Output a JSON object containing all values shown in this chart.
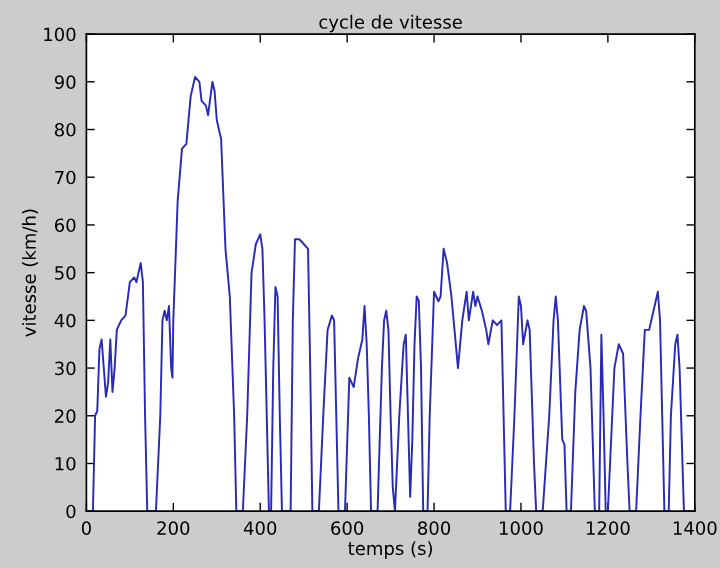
{
  "chart_data": {
    "type": "line",
    "title": "cycle de vitesse",
    "xlabel": "temps (s)",
    "ylabel": "vitesse (km/h)",
    "x": [
      0,
      15,
      20,
      25,
      30,
      35,
      40,
      45,
      50,
      55,
      60,
      65,
      70,
      80,
      90,
      100,
      110,
      115,
      120,
      125,
      130,
      135,
      140,
      160,
      170,
      175,
      180,
      185,
      190,
      195,
      198,
      200,
      210,
      220,
      230,
      240,
      250,
      260,
      265,
      275,
      280,
      290,
      295,
      300,
      310,
      320,
      330,
      340,
      345,
      360,
      370,
      380,
      390,
      400,
      405,
      410,
      415,
      420,
      425,
      430,
      435,
      440,
      445,
      450,
      470,
      475,
      480,
      490,
      500,
      510,
      515,
      520,
      535,
      545,
      555,
      565,
      570,
      575,
      580,
      595,
      605,
      615,
      625,
      635,
      640,
      645,
      650,
      655,
      670,
      680,
      685,
      690,
      695,
      700,
      705,
      710,
      720,
      730,
      735,
      740,
      745,
      750,
      755,
      760,
      765,
      770,
      775,
      785,
      790,
      800,
      810,
      815,
      822,
      830,
      840,
      850,
      855,
      865,
      875,
      880,
      890,
      895,
      900,
      910,
      920,
      925,
      935,
      945,
      955,
      965,
      975,
      985,
      995,
      1000,
      1005,
      1015,
      1020,
      1030,
      1035,
      1050,
      1065,
      1075,
      1080,
      1085,
      1095,
      1100,
      1105,
      1115,
      1125,
      1135,
      1145,
      1150,
      1160,
      1170,
      1180,
      1185,
      1190,
      1195,
      1200,
      1210,
      1215,
      1225,
      1235,
      1245,
      1250,
      1265,
      1275,
      1285,
      1295,
      1305,
      1315,
      1320,
      1330,
      1340,
      1345,
      1355,
      1360,
      1365,
      1375,
      1380
    ],
    "series": [
      {
        "color": "#2a2ab8",
        "values": [
          0,
          0,
          20,
          21,
          34,
          36,
          30,
          24,
          27,
          36,
          25,
          30,
          38,
          40,
          41,
          48,
          49,
          48,
          50,
          52,
          48,
          20,
          0,
          0,
          20,
          40,
          42,
          40,
          43,
          30,
          28,
          40,
          65,
          76,
          77,
          87,
          91,
          90,
          86,
          85,
          83,
          90,
          88,
          82,
          78,
          55,
          45,
          20,
          0,
          0,
          20,
          50,
          56,
          58,
          55,
          40,
          20,
          0,
          0,
          30,
          47,
          45,
          20,
          0,
          0,
          40,
          57,
          57,
          56,
          55,
          30,
          0,
          0,
          20,
          38,
          41,
          40,
          20,
          0,
          0,
          28,
          26,
          32,
          36,
          43,
          35,
          20,
          0,
          0,
          30,
          40,
          42,
          38,
          20,
          5,
          0,
          20,
          35,
          37,
          20,
          3,
          15,
          35,
          45,
          44,
          30,
          0,
          0,
          20,
          46,
          44,
          45,
          55,
          52,
          45,
          35,
          30,
          40,
          46,
          40,
          46,
          43,
          45,
          42,
          38,
          35,
          40,
          39,
          40,
          0,
          0,
          20,
          45,
          43,
          35,
          40,
          38,
          10,
          0,
          0,
          20,
          40,
          45,
          40,
          15,
          14,
          0,
          0,
          25,
          38,
          43,
          42,
          30,
          0,
          0,
          37,
          20,
          0,
          0,
          20,
          30,
          35,
          33,
          10,
          0,
          0,
          20,
          38,
          38,
          42,
          46,
          40,
          0,
          0,
          20,
          35,
          37,
          30,
          0,
          0
        ]
      }
    ],
    "xlim": [
      0,
      1400
    ],
    "xticks": [
      0,
      200,
      400,
      600,
      800,
      1000,
      1200,
      1400
    ],
    "ylim": [
      0,
      100
    ],
    "yticks": [
      0,
      10,
      20,
      30,
      40,
      50,
      60,
      70,
      80,
      90,
      100
    ],
    "grid": false,
    "marker": "none",
    "line_style": "solid"
  }
}
